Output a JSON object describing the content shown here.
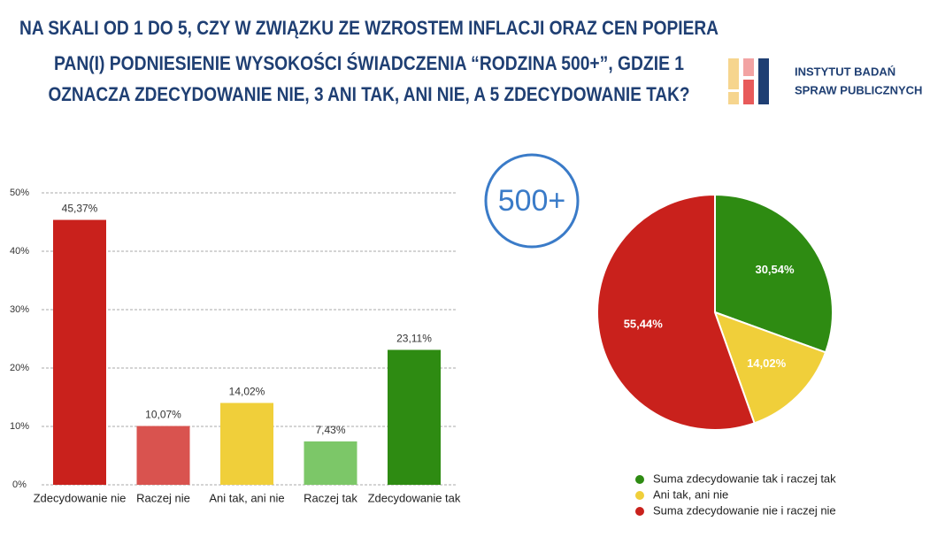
{
  "header": {
    "title_lines": [
      "NA SKALI OD 1 DO 5, CZY W ZWIĄZKU ZE WZROSTEM INFLACJI ORAZ CEN POPIERA",
      "PAN(I) PODNIESIENIE WYSOKOŚCI ŚWIADCZENIA “RODZINA 500+”, GDZIE 1",
      "OZNACZA ZDECYDOWANIE NIE, 3 ANI TAK, ANI NIE, A 5 ZDECYDOWANIE TAK?"
    ],
    "logo_lines": [
      "INSTYTUT BADAŃ",
      "SPRAW PUBLICZNYCH"
    ],
    "badge": "500+"
  },
  "chart_data": [
    {
      "type": "bar",
      "categories": [
        "Zdecydowanie nie",
        "Raczej nie",
        "Ani tak, ani nie",
        "Raczej tak",
        "Zdecydowanie tak"
      ],
      "values": [
        45.37,
        10.07,
        14.02,
        7.43,
        23.11
      ],
      "value_labels": [
        "45,37%",
        "10,07%",
        "14,02%",
        "7,43%",
        "23,11%"
      ],
      "colors": [
        "#c9211c",
        "#d9534f",
        "#f0cf3a",
        "#7cc768",
        "#2e8b12"
      ],
      "ylim": [
        0,
        50
      ],
      "yticks": [
        {
          "value": 0,
          "label": "0%"
        },
        {
          "value": 10,
          "label": "10%"
        },
        {
          "value": 20,
          "label": "20%"
        },
        {
          "value": 30,
          "label": "30%"
        },
        {
          "value": 40,
          "label": "40%"
        },
        {
          "value": 50,
          "label": "50%"
        }
      ],
      "grid": true
    },
    {
      "type": "pie",
      "categories": [
        "Suma zdecydowanie tak i raczej tak",
        "Ani tak, ani nie",
        "Suma zdecydowanie nie i raczej nie"
      ],
      "values": [
        30.54,
        14.02,
        55.44
      ],
      "value_labels": [
        "30,54%",
        "14,02%",
        "55,44%"
      ],
      "colors": [
        "#2e8b12",
        "#f0cf3a",
        "#c9211c"
      ],
      "legend": "bottom"
    }
  ]
}
